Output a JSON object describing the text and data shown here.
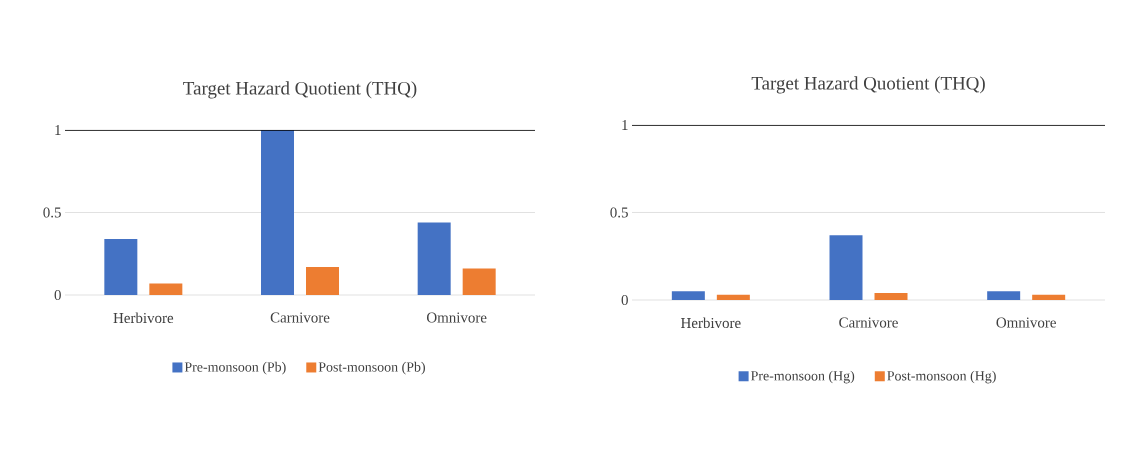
{
  "chart_data": [
    {
      "type": "bar",
      "title": "Target Hazard Quotient (THQ)",
      "categories": [
        "Herbivore",
        "Carnivore",
        "Omnivore"
      ],
      "series": [
        {
          "name": "Pre-monsoon (Pb)",
          "color": "#4472c4",
          "values": [
            0.34,
            1.0,
            0.44
          ]
        },
        {
          "name": "Post-monsoon (Pb)",
          "color": "#ed7d31",
          "values": [
            0.07,
            0.17,
            0.16
          ]
        }
      ],
      "ylim": [
        0,
        1
      ],
      "yticks": [
        0,
        0.5,
        1
      ],
      "grid": "y",
      "legend": "bottom",
      "ref_lines": [
        {
          "axis": "y",
          "value": 1,
          "color": "#000000"
        }
      ]
    },
    {
      "type": "bar",
      "title": "Target Hazard Quotient (THQ)",
      "categories": [
        "Herbivore",
        "Carnivore",
        "Omnivore"
      ],
      "series": [
        {
          "name": "Pre-monsoon (Hg)",
          "color": "#4472c4",
          "values": [
            0.05,
            0.37,
            0.05
          ]
        },
        {
          "name": "Post-monsoon (Hg)",
          "color": "#ed7d31",
          "values": [
            0.03,
            0.04,
            0.03
          ]
        }
      ],
      "ylim": [
        0,
        1
      ],
      "yticks": [
        0,
        0.5,
        1
      ],
      "grid": "y",
      "legend": "bottom",
      "ref_lines": [
        {
          "axis": "y",
          "value": 1,
          "color": "#000000"
        }
      ]
    }
  ]
}
